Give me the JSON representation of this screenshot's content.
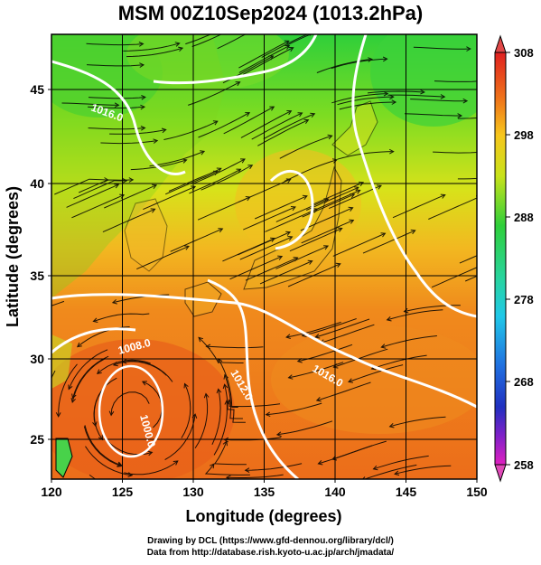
{
  "title": "MSM 00Z10Sep2024 (1013.2hPa)",
  "axes": {
    "xlabel": "Longitude (degrees)",
    "ylabel": "Latitude  (degrees)",
    "xlim": [
      120,
      150
    ],
    "ylim": [
      22.5,
      47.6
    ],
    "x_ticks": [
      "120",
      "125",
      "130",
      "135",
      "140",
      "145",
      "150"
    ],
    "y_ticks": [
      "25",
      "30",
      "35",
      "40",
      "45"
    ]
  },
  "colorbar": {
    "min": 258,
    "max": 308,
    "ticks": [
      "308",
      "298",
      "288",
      "278",
      "268",
      "258"
    ]
  },
  "contour_labels": [
    "1016.0",
    "1008.0",
    "1012.0",
    "1016.0",
    "1000.0"
  ],
  "credits": {
    "line1": "Drawing by DCL (https://www.gfd-dennou.org/library/dcl/)",
    "line2": "Data from http://database.rish.kyoto-u.ac.jp/arch/jmadata/"
  }
}
